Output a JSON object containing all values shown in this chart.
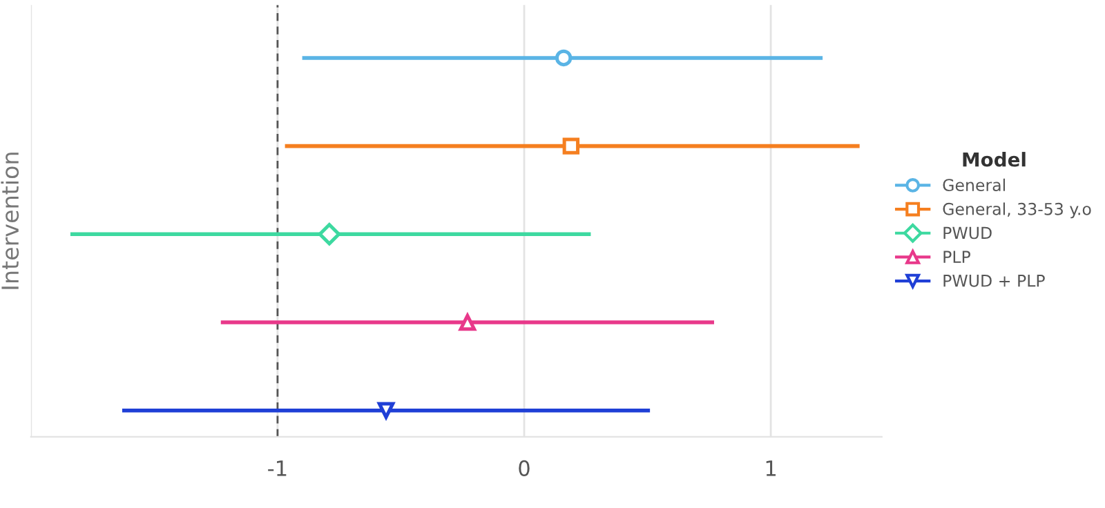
{
  "chart_data": {
    "type": "scatter",
    "orientation": "horizontal",
    "ylabel": "Intervention",
    "legend_title": "Model",
    "legend": "right",
    "grid": "x",
    "tick_labels": "x",
    "categories": [
      null,
      null,
      null,
      null,
      null
    ],
    "xlim": [
      -2,
      1.45
    ],
    "xticks": [
      {
        "value": -2,
        "label": null
      },
      -1,
      0,
      1
    ],
    "ref_lines": [
      {
        "axis": "x",
        "value": -1,
        "color": "#555555",
        "line_style": "dashed"
      }
    ],
    "series": [
      {
        "name": "General",
        "color": "#5ab4e5",
        "marker": "circle",
        "values": [
          0.16,
          null,
          null,
          null,
          null
        ],
        "errors": [
          [
            -0.9,
            1.21
          ],
          null,
          null,
          null,
          null
        ]
      },
      {
        "name": "General, 33-53 y.o",
        "color": "#f57f20",
        "marker": "square",
        "values": [
          null,
          0.19,
          null,
          null,
          null
        ],
        "errors": [
          null,
          [
            -0.97,
            1.36
          ],
          null,
          null,
          null
        ]
      },
      {
        "name": "PWUD",
        "color": "#3dd9a0",
        "marker": "diamond",
        "values": [
          null,
          null,
          -0.79,
          null,
          null
        ],
        "errors": [
          null,
          null,
          [
            -1.84,
            0.27
          ],
          null,
          null
        ]
      },
      {
        "name": "PLP",
        "color": "#e8388a",
        "marker": "triangle",
        "values": [
          null,
          null,
          null,
          -0.23,
          null
        ],
        "errors": [
          null,
          null,
          null,
          [
            -1.23,
            0.77
          ],
          null
        ]
      },
      {
        "name": "PWUD + PLP",
        "color": "#1f3fd6",
        "marker": "triangle_down",
        "values": [
          null,
          null,
          null,
          null,
          -0.56
        ],
        "errors": [
          null,
          null,
          null,
          null,
          [
            -1.63,
            0.51
          ]
        ]
      }
    ]
  }
}
